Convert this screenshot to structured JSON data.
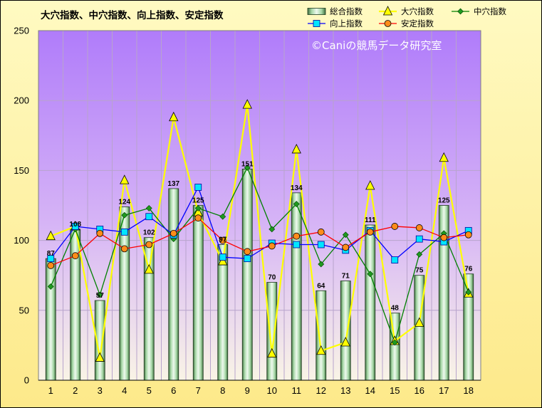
{
  "chart_data": {
    "type": "bar",
    "title": "大穴指数、中穴指数、向上指数、安定指数",
    "watermark": "©Caniの競馬データ研究室",
    "categories": [
      "1",
      "2",
      "3",
      "4",
      "5",
      "6",
      "7",
      "8",
      "9",
      "10",
      "11",
      "12",
      "13",
      "14",
      "15",
      "16",
      "17",
      "18"
    ],
    "ylim": [
      0,
      250
    ],
    "yticks": [
      0,
      50,
      100,
      150,
      200,
      250
    ],
    "grid": true,
    "legend_position": "top-right",
    "series": [
      {
        "name": "総合指数",
        "kind": "bar",
        "color": "#9fd39f",
        "values": [
          87,
          108,
          57,
          124,
          102,
          137,
          125,
          97,
          151,
          70,
          134,
          64,
          71,
          111,
          48,
          75,
          125,
          76
        ]
      },
      {
        "name": "大穴指数",
        "kind": "line",
        "marker": "triangle",
        "color": "#ffff00",
        "values": [
          103,
          110,
          16,
          143,
          79,
          188,
          120,
          85,
          197,
          19,
          165,
          21,
          27,
          139,
          28,
          41,
          159,
          62
        ]
      },
      {
        "name": "中穴指数",
        "kind": "line",
        "marker": "diamond",
        "color": "#008000",
        "values": [
          67,
          108,
          61,
          118,
          123,
          101,
          123,
          117,
          152,
          108,
          126,
          83,
          104,
          76,
          27,
          90,
          105,
          63
        ]
      },
      {
        "name": "向上指数",
        "kind": "line",
        "marker": "square",
        "color": "#0000ff",
        "values": [
          87,
          110,
          108,
          106,
          117,
          104,
          138,
          88,
          87,
          98,
          97,
          97,
          93,
          107,
          86,
          101,
          99,
          107
        ]
      },
      {
        "name": "安定指数",
        "kind": "line",
        "marker": "circle",
        "color": "#ff0000",
        "values": [
          82,
          89,
          105,
          94,
          97,
          105,
          116,
          100,
          92,
          96,
          103,
          106,
          95,
          106,
          110,
          109,
          102,
          104
        ]
      }
    ]
  }
}
